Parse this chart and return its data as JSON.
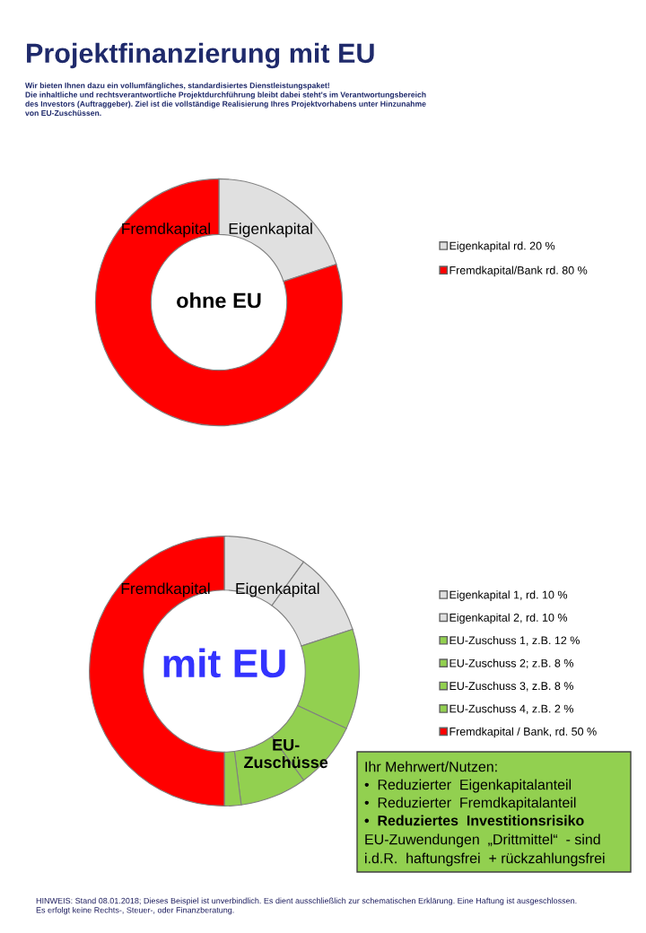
{
  "chart_data": [
    {
      "type": "donut",
      "title": "Projektfinanzierung mit EU",
      "subtitle": "Wir bieten Ihnen dazu ein vollumfängliches, standardisiertes Dienstleistungspaket!\nDie inhaltliche und rechtsverantwortliche Projektdurchführung bleibt dabei steht's im Verantwortungsbereich\ndes Investors (Auftraggeber). Ziel ist die vollständige Realisierung Ihres Projektvorhabens unter Hinzunahme\nvon EU-Zuschüssen.",
      "categories": [
        "Eigenkapital rd. 20 %",
        "Fremdkapital/Bank rd. 80 %"
      ],
      "values": [
        20,
        80
      ],
      "colors": [
        "#e0e0e0",
        "#ff0000"
      ],
      "legend": "right",
      "annotations": [
        "Fremdkapital",
        "Eigenkapital",
        "ohne EU"
      ]
    },
    {
      "type": "donut",
      "categories": [
        "Eigenkapital 1, rd. 10 %",
        "Eigenkapital 2, rd. 10 %",
        "EU-Zuschuss 1, z.B. 12 %",
        "EU-Zuschuss 2; z.B. 8 %",
        "EU-Zuschuss 3, z.B. 8 %",
        "EU-Zuschuss 4, z.B. 2 %",
        "Fremdkapital / Bank, rd. 50 %"
      ],
      "values": [
        10,
        10,
        12,
        8,
        8,
        2,
        50
      ],
      "colors": [
        "#e0e0e0",
        "#e0e0e0",
        "#92d050",
        "#92d050",
        "#92d050",
        "#92d050",
        "#ff0000"
      ],
      "legend": "right",
      "annotations": [
        "Fremdkapital",
        "Eigenkapital",
        "mit EU",
        "EU-\nZuschüsse",
        "Ihr Mehrwert/Nutzen:",
        "•  Reduzierter  Eigenkapitalanteil",
        "•  Reduzierter  Fremdkapitalanteil",
        "•  Reduziertes  Investitionsrisiko",
        "EU-Zuwendungen  „Drittmittel“  - sind",
        "i.d.R.  haftungsfrei  + rückzahlungsfrei",
        "HINWEIS: Stand 08.01.2018; Dieses Beispiel ist unverbindlich. Es dient ausschließlich zur schematischen Erklärung. Eine Haftung ist ausgeschlossen.\nEs erfolgt keine Rechts-, Steuer-, oder Finanzberatung."
      ]
    }
  ]
}
